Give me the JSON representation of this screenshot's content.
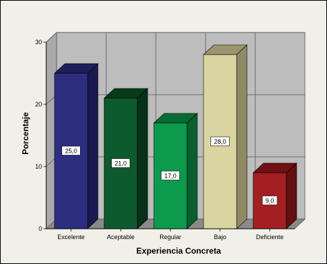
{
  "chart_data": {
    "type": "bar",
    "categories": [
      "Excelente",
      "Aceptable",
      "Regular",
      "Bajo",
      "Deficiente"
    ],
    "values": [
      25.0,
      21.0,
      17.0,
      28.0,
      9.0
    ],
    "data_labels": [
      "25,0",
      "21,0",
      "17,0",
      "28,0",
      "9,0"
    ],
    "xlabel": "Experiencia Concreta",
    "ylabel": "Porcentaje",
    "ylim": [
      0,
      30
    ],
    "yticks": [
      0,
      10,
      20,
      30
    ],
    "ytick_labels": [
      "0",
      "10",
      "20",
      "30"
    ],
    "grid": true,
    "style": "3d",
    "bar_colors": [
      "#2e2e80",
      "#0d5a2e",
      "#0e9a4c",
      "#dad5a0",
      "#a31f22"
    ],
    "bar_top_colors": [
      "#1e1e5a",
      "#083a1c",
      "#0a6a34",
      "#9a9470",
      "#6e1214"
    ],
    "bar_side_colors": [
      "#1a1a50",
      "#063018",
      "#08602e",
      "#8f8a66",
      "#621012"
    ],
    "wall_color": "#bdbdbd",
    "floor_color": "#8a8a8a",
    "background_color": "#f1f0e8"
  }
}
